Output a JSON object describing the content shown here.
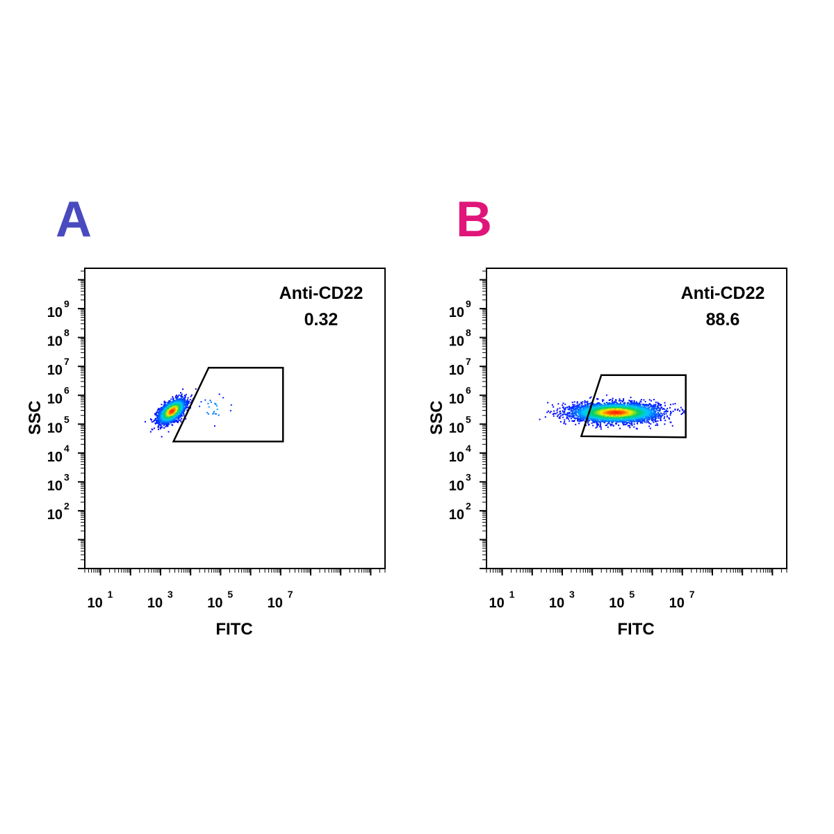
{
  "chart_data": [
    {
      "type": "scatter",
      "panel_label": "A",
      "panel_label_color": "#4a4abf",
      "xlabel": "FITC",
      "ylabel": "SSC",
      "xscale": "log",
      "yscale": "log",
      "xlim": [
        3,
        30000000000
      ],
      "ylim": [
        1,
        25000000000
      ],
      "x_tick_labels": [
        {
          "value": 10,
          "base": "10",
          "exp": "1"
        },
        {
          "value": 1000,
          "base": "10",
          "exp": "3"
        },
        {
          "value": 100000,
          "base": "10",
          "exp": "5"
        },
        {
          "value": 10000000,
          "base": "10",
          "exp": "7"
        }
      ],
      "y_tick_labels": [
        {
          "value": 100,
          "base": "10",
          "exp": "2"
        },
        {
          "value": 1000,
          "base": "10",
          "exp": "3"
        },
        {
          "value": 10000,
          "base": "10",
          "exp": "4"
        },
        {
          "value": 100000,
          "base": "10",
          "exp": "5"
        },
        {
          "value": 1000000,
          "base": "10",
          "exp": "6"
        },
        {
          "value": 10000000,
          "base": "10",
          "exp": "7"
        },
        {
          "value": 100000000,
          "base": "10",
          "exp": "8"
        },
        {
          "value": 1000000000,
          "base": "10",
          "exp": "9"
        }
      ],
      "gate": {
        "name": "Anti-CD22",
        "percent": "0.32",
        "polygon": [
          [
            2700,
            25000
          ],
          [
            40000,
            9000000
          ],
          [
            12000000,
            9000000
          ],
          [
            12000000,
            25000
          ]
        ]
      },
      "populations": [
        {
          "x_center": 2400,
          "y_center": 280000,
          "x_sd_decades": 0.22,
          "y_sd_decades": 0.17,
          "count": 2500,
          "tilt": 0.5
        },
        {
          "x_center": 60000,
          "y_center": 350000,
          "x_sd_decades": 0.35,
          "y_sd_decades": 0.25,
          "count": 25,
          "tilt": 0
        }
      ]
    },
    {
      "type": "scatter",
      "panel_label": "B",
      "panel_label_color": "#e0157a",
      "xlabel": "FITC",
      "ylabel": "SSC",
      "xscale": "log",
      "yscale": "log",
      "xlim": [
        3,
        30000000000
      ],
      "ylim": [
        1,
        25000000000
      ],
      "x_tick_labels": [
        {
          "value": 10,
          "base": "10",
          "exp": "1"
        },
        {
          "value": 1000,
          "base": "10",
          "exp": "3"
        },
        {
          "value": 100000,
          "base": "10",
          "exp": "5"
        },
        {
          "value": 10000000,
          "base": "10",
          "exp": "7"
        }
      ],
      "y_tick_labels": [
        {
          "value": 100,
          "base": "10",
          "exp": "2"
        },
        {
          "value": 1000,
          "base": "10",
          "exp": "3"
        },
        {
          "value": 10000,
          "base": "10",
          "exp": "4"
        },
        {
          "value": 100000,
          "base": "10",
          "exp": "5"
        },
        {
          "value": 1000000,
          "base": "10",
          "exp": "6"
        },
        {
          "value": 10000000,
          "base": "10",
          "exp": "7"
        },
        {
          "value": 100000000,
          "base": "10",
          "exp": "8"
        },
        {
          "value": 1000000000,
          "base": "10",
          "exp": "9"
        }
      ],
      "gate": {
        "name": "Anti-CD22",
        "percent": "88.6",
        "polygon": [
          [
            4300,
            38000
          ],
          [
            20000,
            5000000
          ],
          [
            13000000,
            5000000
          ],
          [
            13000000,
            35000
          ]
        ]
      },
      "populations": [
        {
          "x_center": 60000,
          "y_center": 250000,
          "x_sd_decades": 0.7,
          "y_sd_decades": 0.16,
          "count": 4500,
          "tilt": 0
        }
      ]
    }
  ],
  "colors": {
    "density_low": "#0000ff",
    "density_mid1": "#00c8ff",
    "density_mid2": "#00d060",
    "density_mid3": "#ffee00",
    "density_high": "#ff2000",
    "axis": "#000000",
    "gate": "#000000"
  }
}
